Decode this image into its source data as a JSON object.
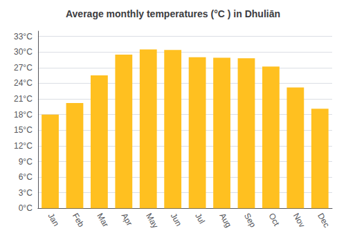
{
  "chart_data": {
    "type": "bar",
    "title": "Average monthly temperatures (°C ) in Dhuliān",
    "categories": [
      "Jan",
      "Feb",
      "Mar",
      "Apr",
      "May",
      "Jun",
      "Jul",
      "Aug",
      "Sep",
      "Oct",
      "Nov",
      "Dec"
    ],
    "values": [
      18.0,
      20.2,
      25.5,
      29.5,
      30.5,
      30.4,
      29.0,
      28.9,
      28.8,
      27.2,
      23.2,
      19.1
    ],
    "color": "#FFC020",
    "ylim": [
      0,
      34
    ],
    "yticks": [
      {
        "value": 0,
        "label": "0°C"
      },
      {
        "value": 3,
        "label": "3°C"
      },
      {
        "value": 6,
        "label": "6°C"
      },
      {
        "value": 9,
        "label": "9°C"
      },
      {
        "value": 12,
        "label": "12°C"
      },
      {
        "value": 15,
        "label": "15°C"
      },
      {
        "value": 18,
        "label": "18°C"
      },
      {
        "value": 21,
        "label": "21°C"
      },
      {
        "value": 24,
        "label": "24°C"
      },
      {
        "value": 27,
        "label": "27°C"
      },
      {
        "value": 30,
        "label": "30°C"
      },
      {
        "value": 33,
        "label": "33°C"
      }
    ],
    "grid": true
  }
}
